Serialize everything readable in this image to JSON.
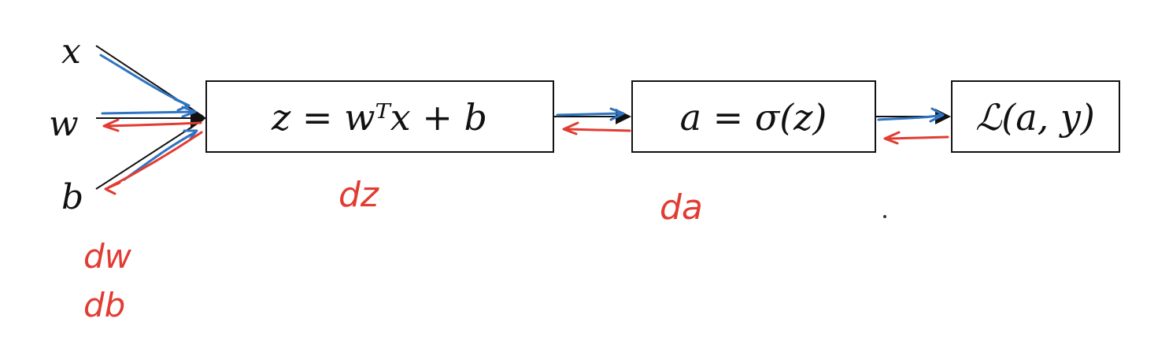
{
  "inputs": {
    "x": "x",
    "w": "w",
    "b": "b"
  },
  "nodes": {
    "linear": "z = wᵀx + b",
    "activation": "a =  σ(z)",
    "loss": "ℒ(a, y)"
  },
  "gradients": {
    "dz": "dz",
    "da": "da",
    "dw": "dw",
    "db": "db"
  },
  "colors": {
    "forward": "#2f74c0",
    "backward": "#e23c32",
    "structure": "#111111"
  }
}
